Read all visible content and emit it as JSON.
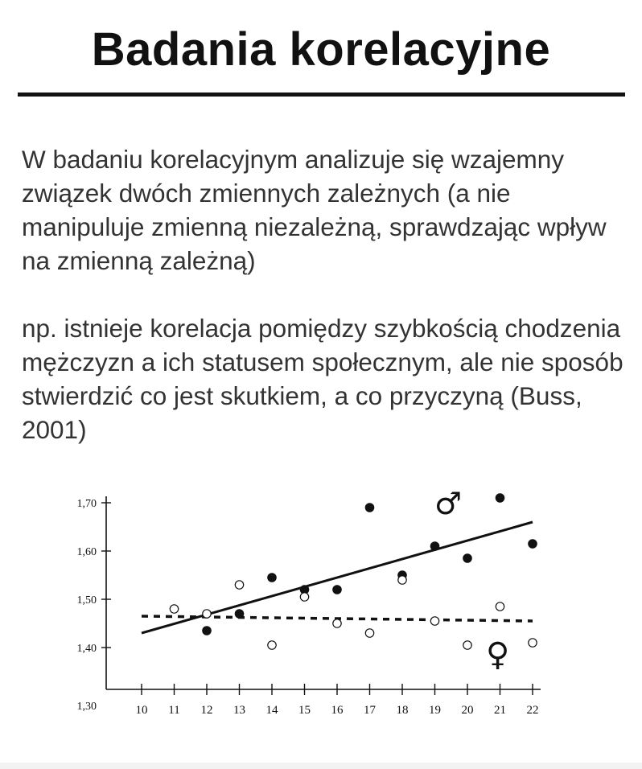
{
  "slide": {
    "title": "Badania korelacyjne",
    "paragraph1": "W badaniu korelacyjnym analizuje się wzajemny związek dwóch zmiennych zależnych (a nie manipuluje zmienną niezależną, sprawdzając wpływ na zmienną zależną)",
    "paragraph2": "np. istnieje korelacja pomiędzy szybkością chodzenia mężczyzn a ich statusem społecznym, ale nie sposób stwierdzić co jest skutkiem, a co przyczyną (Buss, 2001)"
  },
  "chart_data": {
    "type": "scatter",
    "x_ticks": [
      "10",
      "11",
      "12",
      "13",
      "14",
      "15",
      "16",
      "17",
      "18",
      "19",
      "20",
      "21",
      "22"
    ],
    "y_ticks": [
      "1,30",
      "1,40",
      "1,50",
      "1,60",
      "1,70"
    ],
    "xlim": [
      10,
      22
    ],
    "ylim": [
      1.3,
      1.7
    ],
    "grid": false,
    "legend": "symbols on plot (male top-right, female bottom-right)",
    "series": [
      {
        "name": "♂",
        "marker": "filled",
        "points": [
          [
            12,
            1.435
          ],
          [
            13,
            1.47
          ],
          [
            14,
            1.545
          ],
          [
            15,
            1.52
          ],
          [
            16,
            1.52
          ],
          [
            17,
            1.69
          ],
          [
            18,
            1.55
          ],
          [
            19,
            1.61
          ],
          [
            20,
            1.585
          ],
          [
            21,
            1.71
          ],
          [
            22,
            1.615
          ]
        ],
        "trend": {
          "style": "solid",
          "from": [
            10,
            1.43
          ],
          "to": [
            22,
            1.66
          ]
        }
      },
      {
        "name": "♀",
        "marker": "open",
        "points": [
          [
            11,
            1.48
          ],
          [
            12,
            1.47
          ],
          [
            13,
            1.53
          ],
          [
            14,
            1.405
          ],
          [
            15,
            1.505
          ],
          [
            16,
            1.45
          ],
          [
            17,
            1.43
          ],
          [
            18,
            1.54
          ],
          [
            19,
            1.455
          ],
          [
            20,
            1.405
          ],
          [
            21,
            1.485
          ],
          [
            22,
            1.41
          ]
        ],
        "trend": {
          "style": "dashed",
          "from": [
            10,
            1.465
          ],
          "to": [
            22,
            1.455
          ]
        }
      }
    ],
    "symbols": {
      "male": "♂",
      "female": "♀"
    },
    "colors": {
      "ink": "#111111",
      "background": "#ffffff"
    }
  }
}
